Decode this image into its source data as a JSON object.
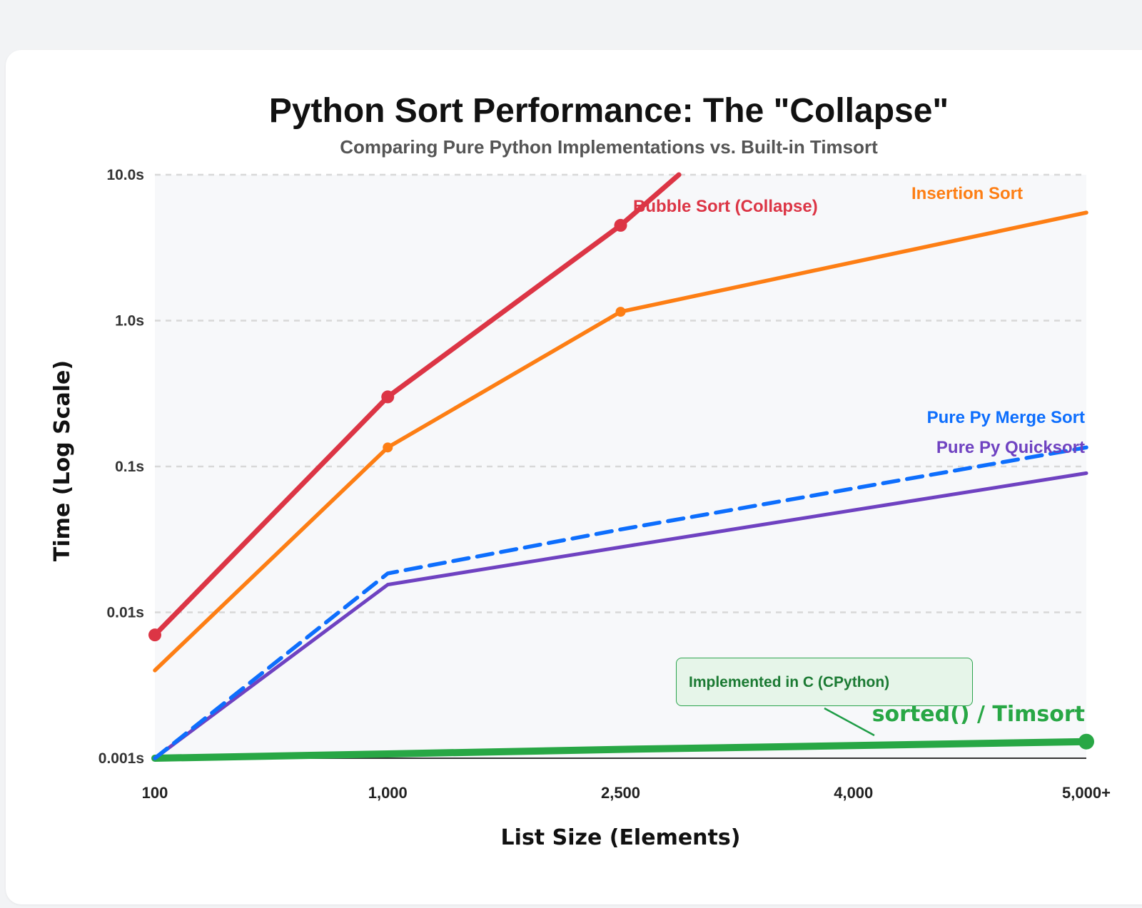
{
  "page": {
    "title": "Python Sort Performance: The \"Collapse\"",
    "subtitle": "Comparing Pure Python Implementations vs. Built-in Timsort"
  },
  "chart_data": {
    "type": "line",
    "title": "Python Sort Performance: The \"Collapse\"",
    "subtitle": "Comparing Pure Python Implementations vs. Built-in Timsort",
    "xlabel": "List Size (Elements)",
    "ylabel": "Time (Log Scale)",
    "y_scale": "log",
    "ylim": [
      0.001,
      10
    ],
    "x_categories": [
      "100",
      "1,000",
      "2,500",
      "4,000",
      "5,000+"
    ],
    "y_ticks": [
      {
        "value": 10,
        "label": "10.0s"
      },
      {
        "value": 1,
        "label": "1.0s"
      },
      {
        "value": 0.1,
        "label": "0.1s"
      },
      {
        "value": 0.01,
        "label": "0.01s"
      },
      {
        "value": 0.001,
        "label": "0.001s"
      }
    ],
    "grid": true,
    "series": [
      {
        "name": "Bubble Sort (Collapse)",
        "color": "#dc3545",
        "style": "solid",
        "markers": [
          0,
          1,
          2
        ],
        "x": [
          0,
          1,
          2,
          2.25
        ],
        "y": [
          0.007,
          0.3,
          4.5,
          10
        ]
      },
      {
        "name": "Insertion Sort",
        "color": "#fd7e14",
        "style": "solid",
        "markers": [
          1,
          2
        ],
        "x": [
          0,
          1,
          2,
          4
        ],
        "y": [
          0.004,
          0.135,
          1.15,
          5.5
        ]
      },
      {
        "name": "Pure Py Merge Sort",
        "color": "#0d6efd",
        "style": "dashed",
        "markers": [],
        "x": [
          0,
          1,
          2,
          4
        ],
        "y": [
          0.001,
          0.0185,
          0.037,
          0.135
        ]
      },
      {
        "name": "Pure Py Quicksort",
        "color": "#6f42c1",
        "style": "solid",
        "markers": [],
        "x": [
          0,
          1,
          2,
          4
        ],
        "y": [
          0.001,
          0.0155,
          0.028,
          0.09
        ]
      },
      {
        "name": "sorted() / Timsort",
        "color": "#28a745",
        "style": "solid",
        "markers": [
          4
        ],
        "x": [
          0,
          1,
          2,
          3,
          4
        ],
        "y": [
          0.001,
          0.00107,
          0.00115,
          0.00122,
          0.0013
        ]
      }
    ],
    "annotations": [
      {
        "text": "Implemented in C (CPython)",
        "target": "sorted() / Timsort"
      }
    ]
  }
}
